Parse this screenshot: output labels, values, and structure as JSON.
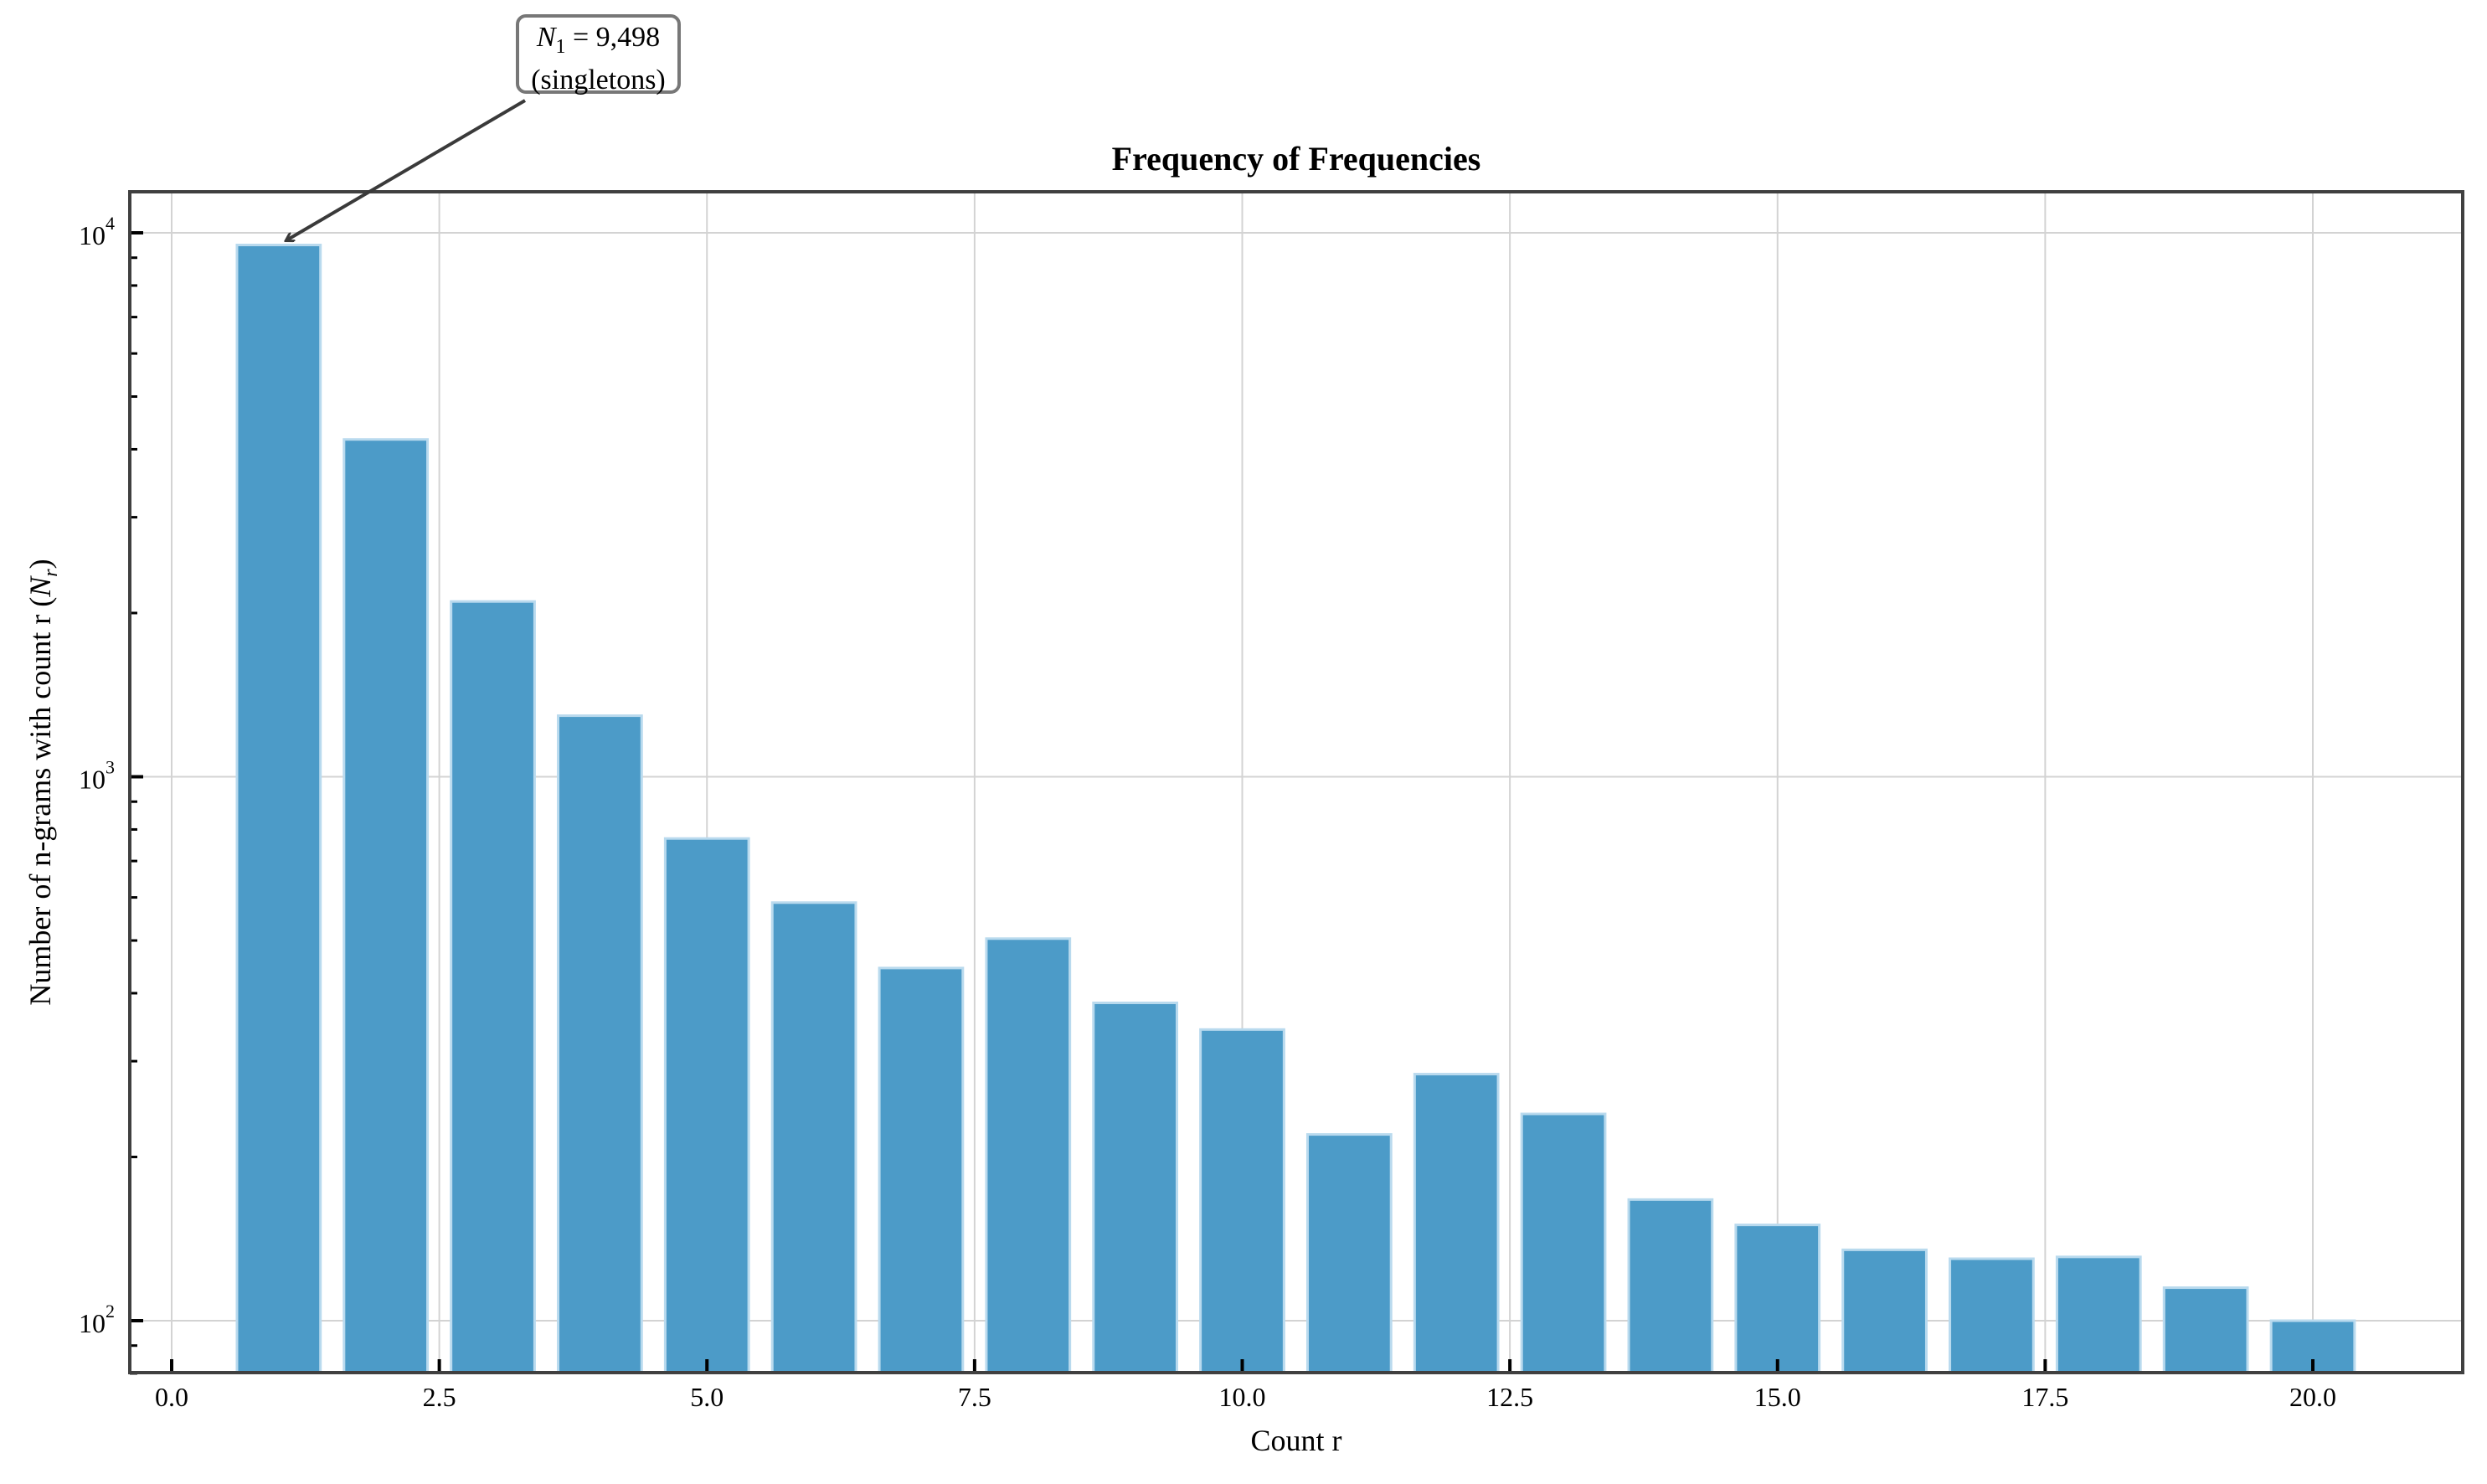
{
  "chart_data": {
    "type": "bar",
    "title": "Frequency of Frequencies",
    "xlabel": "Count r",
    "ylabel": "Number of n-grams with count r (N_r)",
    "ylabel_plain": "Number of n-grams with count r (",
    "ylabel_symbol": "N",
    "ylabel_subscript": "r",
    "yscale": "log",
    "x": [
      1,
      2,
      3,
      4,
      5,
      6,
      7,
      8,
      9,
      10,
      11,
      12,
      13,
      14,
      15,
      16,
      17,
      18,
      19,
      20
    ],
    "values": [
      9498,
      4170,
      2100,
      1295,
      770,
      587,
      445,
      504,
      384,
      343,
      220,
      284,
      240,
      167,
      150,
      135,
      130,
      131,
      115,
      100
    ],
    "xlim": [
      -0.39,
      21.4
    ],
    "ylim": [
      80,
      11900
    ],
    "xticks": [
      "0.0",
      "2.5",
      "5.0",
      "7.5",
      "10.0",
      "12.5",
      "15.0",
      "17.5",
      "20.0"
    ],
    "xtick_values": [
      0,
      2.5,
      5,
      7.5,
      10,
      12.5,
      15,
      17.5,
      20
    ],
    "yticks": [
      {
        "value": 100,
        "base": "10",
        "exp": "2"
      },
      {
        "value": 1000,
        "base": "10",
        "exp": "3"
      },
      {
        "value": 10000,
        "base": "10",
        "exp": "4"
      }
    ],
    "grid": true,
    "bar_width": 0.78,
    "colors": {
      "bar_fill": "#4C9BC8",
      "bar_edge": "#B9DAEE",
      "grid": "#D3D3D3",
      "axes": "#404040",
      "arrow": "#3a3a3a",
      "annot_border": "#777777"
    },
    "annotation": {
      "symbol": "N",
      "subscript": "1",
      "value_text": "= 9,498",
      "line2": "(singletons)",
      "points_to_x": 1,
      "points_to_value": 9498
    }
  }
}
